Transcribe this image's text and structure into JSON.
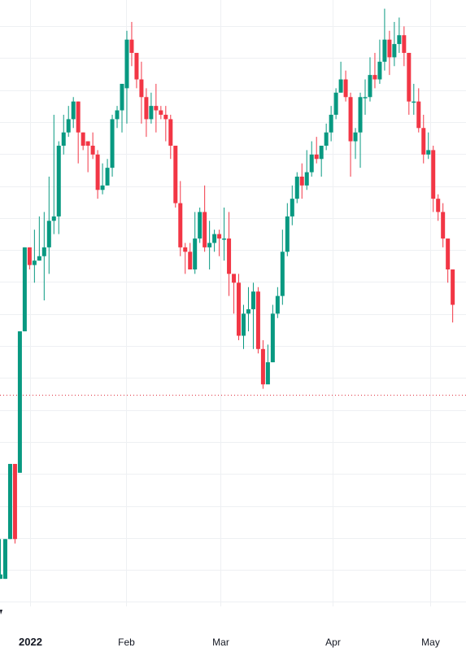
{
  "chart_data": {
    "type": "candlestick",
    "colors": {
      "up": "#089981",
      "down": "#f23645",
      "grid": "#eef0f3",
      "price_line": "#e0323f",
      "axis_text": "#131722"
    },
    "x_ticks": [
      {
        "label": "2022",
        "index": 3,
        "bold": true
      },
      {
        "label": "Feb",
        "index": 23
      },
      {
        "label": "Mar",
        "index": 42
      },
      {
        "label": "Apr",
        "index": 64
      },
      {
        "label": "May",
        "index": 84
      }
    ],
    "current_price_level": 0.6,
    "candles": [
      [
        0.9,
        1.0,
        1.8,
        0.9
      ],
      [
        0.9,
        1.8,
        1.8,
        0.9
      ],
      [
        1.8,
        3.5,
        3.5,
        1.8
      ],
      [
        3.5,
        1.8,
        3.5,
        1.7
      ],
      [
        3.3,
        6.5,
        6.5,
        3.3
      ],
      [
        6.5,
        8.4,
        8.4,
        6.5
      ],
      [
        8.4,
        8.0,
        8.4,
        7.9
      ],
      [
        8.0,
        8.1,
        8.8,
        7.6
      ],
      [
        8.1,
        8.2,
        9.1,
        8.1
      ],
      [
        8.2,
        8.4,
        9.2,
        7.2
      ],
      [
        8.4,
        9.0,
        10.0,
        7.8
      ],
      [
        9.0,
        9.1,
        11.4,
        8.7
      ],
      [
        9.1,
        10.7,
        10.8,
        8.7
      ],
      [
        10.7,
        11.0,
        11.4,
        10.5
      ],
      [
        11.0,
        11.3,
        11.6,
        10.9
      ],
      [
        11.3,
        11.7,
        11.8,
        11.1
      ],
      [
        11.7,
        11.0,
        11.7,
        10.3
      ],
      [
        11.0,
        10.7,
        11.0,
        10.6
      ],
      [
        10.8,
        10.7,
        10.8,
        10.1
      ],
      [
        10.7,
        10.5,
        11.0,
        10.4
      ],
      [
        10.5,
        9.7,
        10.6,
        9.5
      ],
      [
        9.7,
        9.8,
        10.3,
        9.6
      ],
      [
        9.8,
        10.2,
        10.4,
        9.8
      ],
      [
        10.2,
        11.3,
        11.4,
        10.0
      ],
      [
        11.3,
        11.5,
        11.6,
        11.1
      ],
      [
        11.5,
        12.1,
        12.1,
        11.0
      ],
      [
        12.0,
        13.1,
        13.3,
        11.2
      ],
      [
        13.1,
        12.8,
        13.5,
        12.5
      ],
      [
        12.8,
        12.2,
        12.8,
        12.0
      ],
      [
        12.2,
        11.8,
        12.6,
        11.2
      ],
      [
        11.8,
        11.3,
        12.0,
        10.9
      ],
      [
        11.3,
        11.6,
        11.9,
        11.2
      ],
      [
        11.6,
        11.5,
        12.1,
        11.0
      ],
      [
        11.5,
        11.4,
        11.6,
        11.3
      ],
      [
        11.4,
        11.3,
        11.6,
        10.8
      ],
      [
        11.3,
        10.7,
        11.4,
        10.4
      ],
      [
        10.7,
        9.4,
        10.7,
        9.3
      ],
      [
        9.4,
        8.4,
        9.9,
        8.2
      ],
      [
        8.4,
        8.3,
        8.5,
        7.8
      ],
      [
        8.3,
        7.9,
        8.5,
        7.9
      ],
      [
        7.9,
        8.6,
        9.2,
        7.8
      ],
      [
        8.6,
        9.2,
        9.3,
        8.5
      ],
      [
        9.2,
        8.4,
        9.8,
        8.3
      ],
      [
        8.4,
        8.5,
        9.0,
        7.9
      ],
      [
        8.5,
        8.7,
        8.8,
        8.3
      ],
      [
        8.7,
        8.6,
        8.8,
        8.2
      ],
      [
        8.6,
        8.6,
        9.3,
        8.1
      ],
      [
        8.6,
        7.8,
        9.2,
        7.3
      ],
      [
        7.8,
        7.6,
        7.8,
        6.9
      ],
      [
        7.6,
        6.4,
        7.8,
        6.3
      ],
      [
        6.4,
        6.9,
        7.1,
        6.1
      ],
      [
        6.9,
        7.0,
        7.5,
        6.5
      ],
      [
        7.0,
        7.4,
        7.6,
        6.1
      ],
      [
        7.4,
        6.1,
        7.5,
        6.0
      ],
      [
        6.1,
        5.3,
        6.3,
        5.2
      ],
      [
        5.3,
        5.8,
        6.2,
        5.5
      ],
      [
        5.8,
        6.9,
        7.1,
        5.8
      ],
      [
        6.9,
        7.3,
        7.5,
        6.8
      ],
      [
        7.3,
        8.3,
        8.8,
        7.1
      ],
      [
        8.3,
        9.1,
        9.4,
        8.2
      ],
      [
        9.1,
        9.5,
        9.8,
        8.9
      ],
      [
        9.5,
        10.0,
        10.1,
        9.4
      ],
      [
        10.0,
        9.8,
        10.3,
        9.5
      ],
      [
        9.8,
        10.1,
        10.6,
        9.7
      ],
      [
        10.1,
        10.5,
        10.8,
        10.0
      ],
      [
        10.5,
        10.4,
        10.9,
        10.3
      ],
      [
        10.4,
        10.7,
        10.7,
        10.0
      ],
      [
        10.7,
        11.0,
        11.2,
        10.6
      ],
      [
        11.0,
        11.4,
        11.6,
        10.8
      ],
      [
        11.4,
        11.9,
        12.0,
        11.3
      ],
      [
        11.9,
        12.2,
        12.6,
        11.9
      ],
      [
        12.2,
        11.8,
        12.4,
        11.7
      ],
      [
        11.8,
        10.8,
        11.9,
        10.0
      ],
      [
        10.8,
        11.0,
        11.1,
        10.4
      ],
      [
        11.0,
        11.8,
        11.9,
        10.2
      ],
      [
        11.8,
        11.8,
        12.2,
        11.4
      ],
      [
        11.8,
        12.3,
        12.7,
        11.7
      ],
      [
        12.3,
        12.2,
        12.8,
        12.0
      ],
      [
        12.2,
        12.6,
        13.1,
        12.1
      ],
      [
        12.6,
        13.1,
        13.8,
        12.4
      ],
      [
        13.1,
        12.7,
        13.3,
        12.3
      ],
      [
        12.7,
        13.0,
        13.5,
        12.5
      ],
      [
        13.0,
        13.2,
        13.6,
        12.8
      ],
      [
        13.2,
        12.8,
        13.4,
        12.5
      ],
      [
        12.8,
        11.7,
        12.8,
        11.4
      ],
      [
        11.7,
        11.7,
        12.1,
        11.4
      ],
      [
        11.7,
        11.1,
        12.0,
        11.0
      ],
      [
        11.1,
        10.5,
        11.4,
        10.3
      ],
      [
        10.5,
        10.6,
        11.0,
        10.4
      ],
      [
        10.6,
        9.5,
        10.7,
        9.2
      ],
      [
        9.5,
        9.2,
        9.6,
        9.0
      ],
      [
        9.2,
        8.6,
        9.4,
        8.4
      ],
      [
        8.6,
        7.9,
        8.6,
        7.6
      ],
      [
        7.9,
        7.1,
        7.9,
        6.7
      ]
    ]
  }
}
